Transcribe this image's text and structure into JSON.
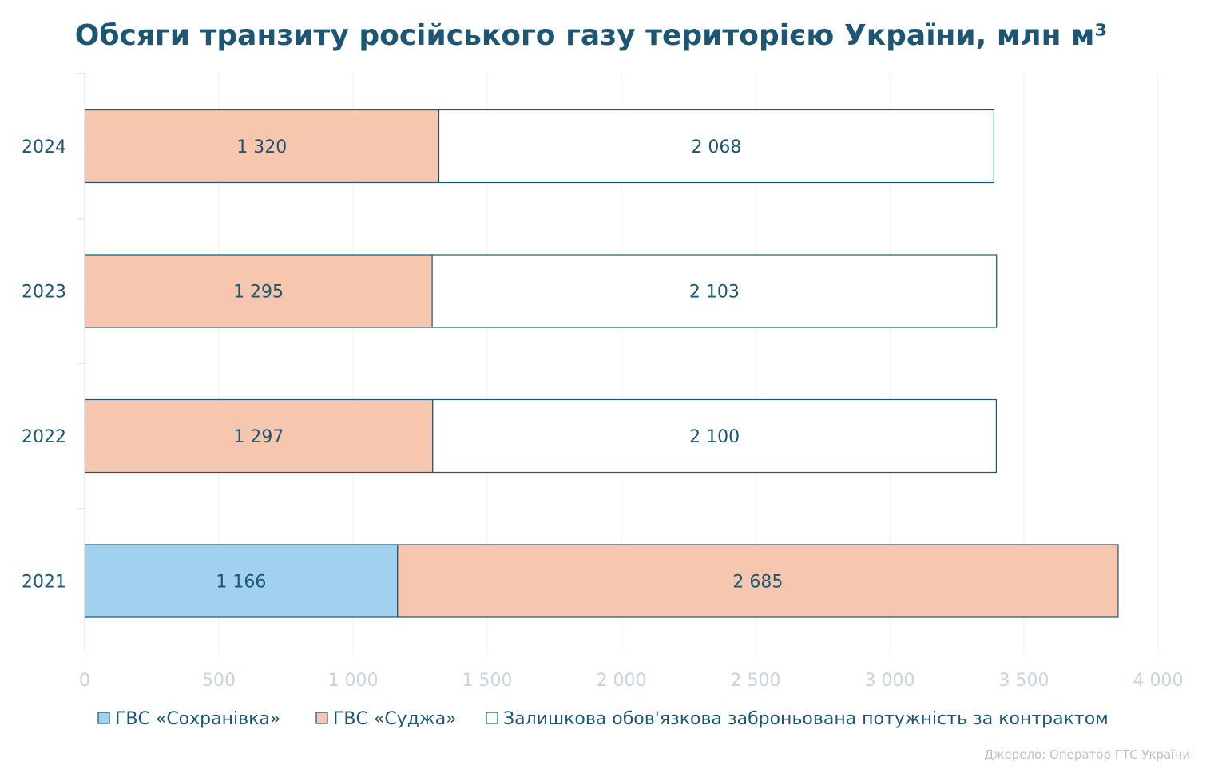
{
  "chart_data": {
    "type": "bar",
    "orientation": "horizontal",
    "stacked": true,
    "title": "Обсяги транзиту російського газу територією України, млн м³",
    "categories": [
      "2024",
      "2023",
      "2022",
      "2021"
    ],
    "series": [
      {
        "name": "ГВС «Сохранівка»",
        "color": "#a0d1ef",
        "values": [
          0,
          0,
          0,
          1166
        ],
        "labels": [
          "",
          "",
          "",
          "1 166"
        ]
      },
      {
        "name": "ГВС «Суджа»",
        "color": "#f7c6ae",
        "values": [
          1320,
          1295,
          1297,
          2685
        ],
        "labels": [
          "1 320",
          "1 295",
          "1 297",
          "2 685"
        ]
      },
      {
        "name": "Залишкова обов'язкова заброньована потужність за контрактом",
        "color": "#ffffff",
        "values": [
          2068,
          2103,
          2100,
          0
        ],
        "labels": [
          "2 068",
          "2 103",
          "2 100",
          ""
        ]
      }
    ],
    "xlim": [
      0,
      4000
    ],
    "xticks": [
      0,
      500,
      1000,
      1500,
      2000,
      2500,
      3000,
      3500,
      4000
    ],
    "xtick_labels": [
      "0",
      "500",
      "1 000",
      "1 500",
      "2 000",
      "2 500",
      "3 000",
      "3 500",
      "4 000"
    ],
    "grid": true,
    "legend_position": "bottom",
    "bar_border_color": "#1c5672",
    "text_color": "#1c5672"
  },
  "source": "Джерело: Оператор ГТС України"
}
